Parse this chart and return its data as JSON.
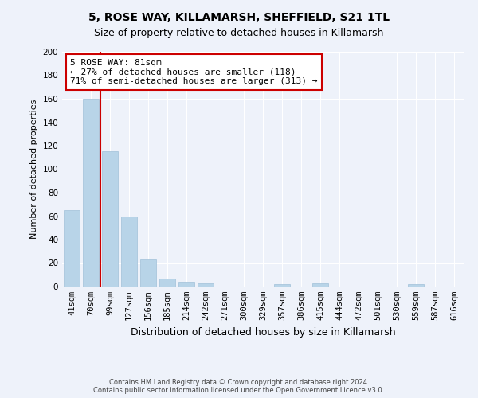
{
  "title": "5, ROSE WAY, KILLAMARSH, SHEFFIELD, S21 1TL",
  "subtitle": "Size of property relative to detached houses in Killamarsh",
  "xlabel": "Distribution of detached houses by size in Killamarsh",
  "ylabel": "Number of detached properties",
  "bar_labels": [
    "41sqm",
    "70sqm",
    "99sqm",
    "127sqm",
    "156sqm",
    "185sqm",
    "214sqm",
    "242sqm",
    "271sqm",
    "300sqm",
    "329sqm",
    "357sqm",
    "386sqm",
    "415sqm",
    "444sqm",
    "472sqm",
    "501sqm",
    "530sqm",
    "559sqm",
    "587sqm",
    "616sqm"
  ],
  "bar_values": [
    65,
    160,
    115,
    60,
    23,
    7,
    4,
    3,
    0,
    0,
    0,
    2,
    0,
    3,
    0,
    0,
    0,
    0,
    2,
    0,
    0
  ],
  "bar_color": "#b8d4e8",
  "bar_edge_color": "#a0c0d8",
  "vline_x": 1.5,
  "vline_color": "#cc0000",
  "annotation_line1": "5 ROSE WAY: 81sqm",
  "annotation_line2": "← 27% of detached houses are smaller (118)",
  "annotation_line3": "71% of semi-detached houses are larger (313) →",
  "annotation_box_facecolor": "#ffffff",
  "annotation_box_edgecolor": "#cc0000",
  "ylim": [
    0,
    200
  ],
  "yticks": [
    0,
    20,
    40,
    60,
    80,
    100,
    120,
    140,
    160,
    180,
    200
  ],
  "footer1": "Contains HM Land Registry data © Crown copyright and database right 2024.",
  "footer2": "Contains public sector information licensed under the Open Government Licence v3.0.",
  "bg_color": "#eef2fa",
  "grid_color": "#ffffff",
  "title_fontsize": 10,
  "subtitle_fontsize": 9,
  "ylabel_fontsize": 8,
  "xlabel_fontsize": 9,
  "tick_fontsize": 7.5,
  "footer_fontsize": 6,
  "annotation_fontsize": 8
}
